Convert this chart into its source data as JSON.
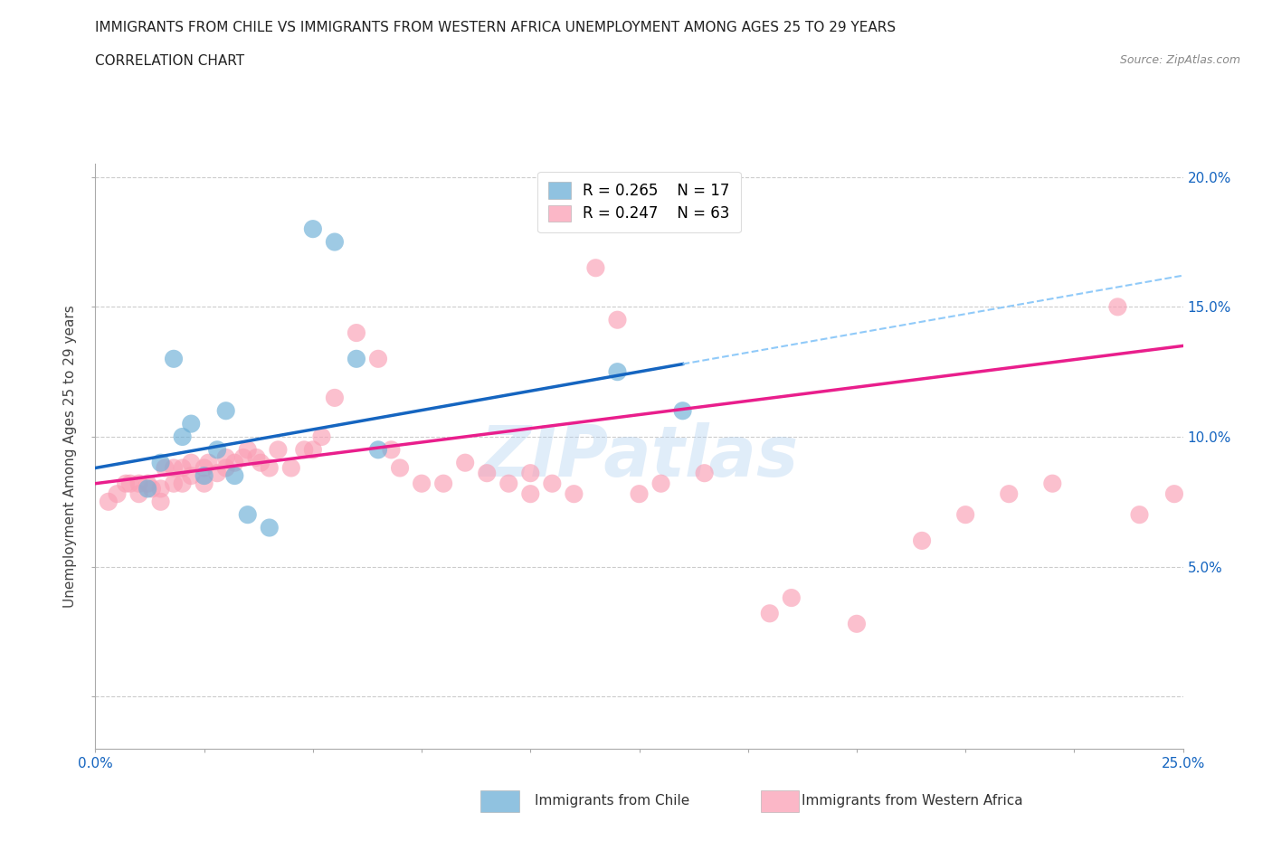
{
  "title": "IMMIGRANTS FROM CHILE VS IMMIGRANTS FROM WESTERN AFRICA UNEMPLOYMENT AMONG AGES 25 TO 29 YEARS",
  "subtitle": "CORRELATION CHART",
  "source": "Source: ZipAtlas.com",
  "ylabel": "Unemployment Among Ages 25 to 29 years",
  "xlim": [
    0.0,
    0.25
  ],
  "ylim": [
    -0.02,
    0.205
  ],
  "chile_color": "#6baed6",
  "western_africa_color": "#fa9fb5",
  "chile_line_color": "#1565c0",
  "chile_dash_color": "#90caf9",
  "wa_line_color": "#e91e8c",
  "chile_R": 0.265,
  "chile_N": 17,
  "western_africa_R": 0.247,
  "western_africa_N": 63,
  "watermark": "ZIPatlas",
  "watermark_color": "#b0d0f0",
  "chile_scatter_x": [
    0.012,
    0.015,
    0.018,
    0.02,
    0.022,
    0.025,
    0.028,
    0.03,
    0.032,
    0.035,
    0.04,
    0.05,
    0.055,
    0.06,
    0.065,
    0.12,
    0.135
  ],
  "chile_scatter_y": [
    0.08,
    0.09,
    0.13,
    0.1,
    0.105,
    0.085,
    0.095,
    0.11,
    0.085,
    0.07,
    0.065,
    0.18,
    0.175,
    0.13,
    0.095,
    0.125,
    0.11
  ],
  "western_africa_scatter_x": [
    0.003,
    0.005,
    0.007,
    0.008,
    0.01,
    0.01,
    0.012,
    0.013,
    0.015,
    0.015,
    0.016,
    0.018,
    0.018,
    0.02,
    0.02,
    0.022,
    0.022,
    0.025,
    0.025,
    0.026,
    0.028,
    0.03,
    0.03,
    0.032,
    0.034,
    0.035,
    0.037,
    0.038,
    0.04,
    0.042,
    0.045,
    0.048,
    0.05,
    0.052,
    0.055,
    0.06,
    0.065,
    0.068,
    0.07,
    0.075,
    0.08,
    0.085,
    0.09,
    0.095,
    0.1,
    0.1,
    0.105,
    0.11,
    0.115,
    0.12,
    0.125,
    0.13,
    0.14,
    0.155,
    0.16,
    0.175,
    0.19,
    0.2,
    0.21,
    0.22,
    0.235,
    0.24,
    0.248
  ],
  "western_africa_scatter_y": [
    0.075,
    0.078,
    0.082,
    0.082,
    0.078,
    0.082,
    0.082,
    0.08,
    0.075,
    0.08,
    0.088,
    0.082,
    0.088,
    0.082,
    0.088,
    0.085,
    0.09,
    0.082,
    0.088,
    0.09,
    0.086,
    0.088,
    0.092,
    0.09,
    0.092,
    0.095,
    0.092,
    0.09,
    0.088,
    0.095,
    0.088,
    0.095,
    0.095,
    0.1,
    0.115,
    0.14,
    0.13,
    0.095,
    0.088,
    0.082,
    0.082,
    0.09,
    0.086,
    0.082,
    0.078,
    0.086,
    0.082,
    0.078,
    0.165,
    0.145,
    0.078,
    0.082,
    0.086,
    0.032,
    0.038,
    0.028,
    0.06,
    0.07,
    0.078,
    0.082,
    0.15,
    0.07,
    0.078
  ],
  "chile_trendline_x0": 0.0,
  "chile_trendline_y0": 0.088,
  "chile_trendline_x1": 0.135,
  "chile_trendline_y1": 0.128,
  "wa_trendline_x0": 0.0,
  "wa_trendline_y0": 0.082,
  "wa_trendline_x1": 0.25,
  "wa_trendline_y1": 0.135
}
